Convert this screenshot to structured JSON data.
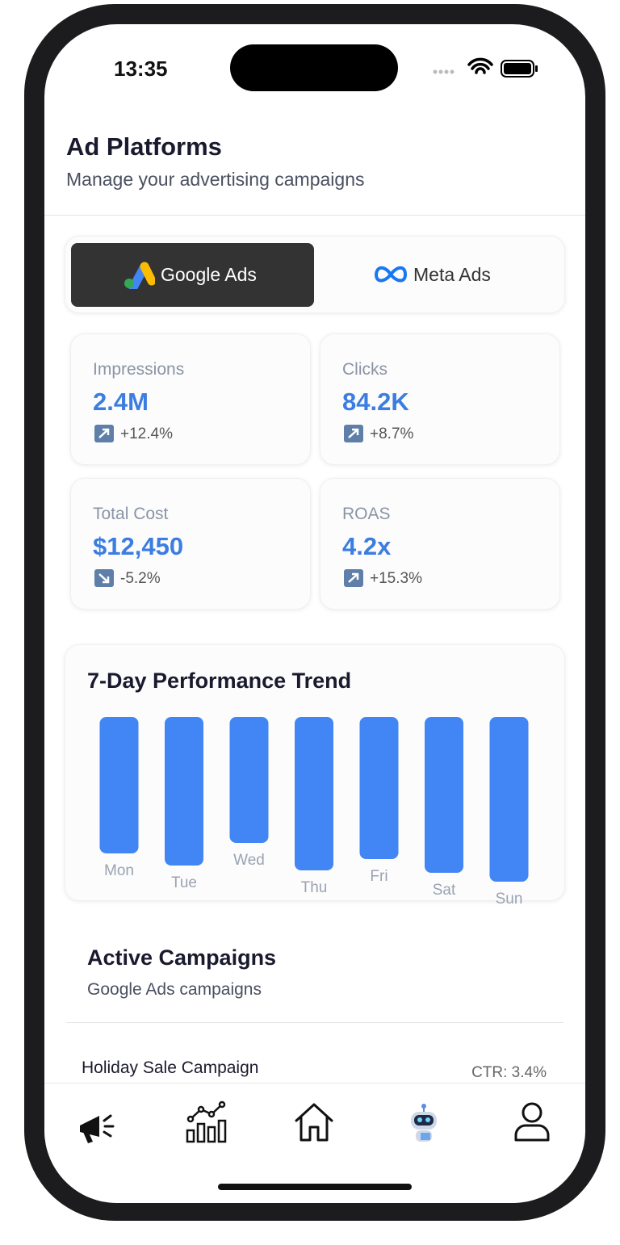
{
  "status_bar": {
    "time": "13:35"
  },
  "header": {
    "title": "Ad Platforms",
    "subtitle": "Manage your advertising campaigns"
  },
  "tabs": [
    "Google Ads",
    "Meta Ads"
  ],
  "stats": [
    {
      "label": "Impressions",
      "value": "2.4M",
      "change": "+12.4%"
    },
    {
      "label": "Clicks",
      "value": "84.2K",
      "change": "+8.7%"
    },
    {
      "label": "Total Cost",
      "value": "$12,450",
      "change": "-5.2%"
    },
    {
      "label": "ROAS",
      "value": "4.2x",
      "change": "+15.3%"
    }
  ],
  "trend": {
    "title": "7-Day Performance Trend",
    "days": [
      "Mon",
      "Tue",
      "Wed",
      "Thu",
      "Fri",
      "Sat",
      "Sun"
    ],
    "values": [
      169,
      184,
      156,
      190,
      176,
      193,
      204
    ],
    "color": "#4285f4"
  },
  "campaigns": {
    "title": "Active Campaigns",
    "subtitle": "Google Ads campaigns",
    "items": [
      {
        "name": "Holiday Sale Campaign",
        "ctr": "CTR: 3.4%"
      }
    ]
  }
}
